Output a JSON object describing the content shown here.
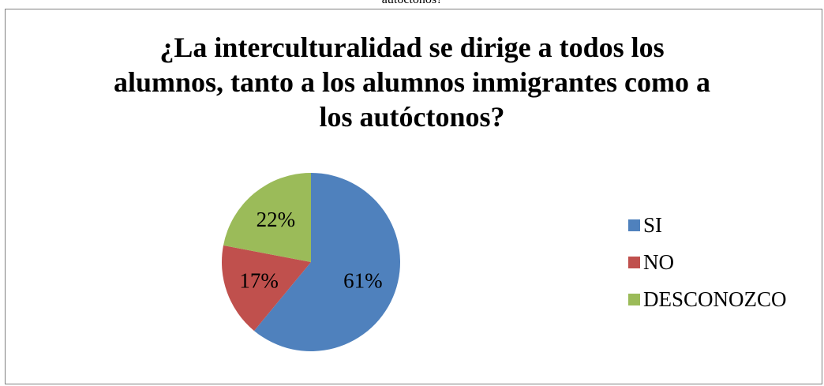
{
  "page": {
    "caption_fragment": "autóctonos?"
  },
  "chart_data": {
    "type": "pie",
    "title_lines": [
      "¿La interculturalidad se dirige a todos los",
      "alumnos, tanto a los alumnos inmigrantes como a",
      "los autóctonos?"
    ],
    "categories": [
      "SI",
      "NO",
      "DESCONOZCO"
    ],
    "values": [
      61,
      17,
      22
    ],
    "labels": [
      "61%",
      "17%",
      "22%"
    ],
    "colors": [
      "#4F81BD",
      "#C0504D",
      "#9BBB59"
    ],
    "legend_position": "right"
  }
}
